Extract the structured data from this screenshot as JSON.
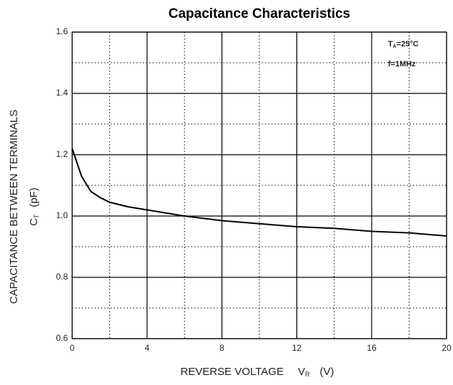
{
  "chart_data": {
    "type": "line",
    "title": "Capacitance Characteristics",
    "y_label": "CAPACITANCE BETWEEN TERMINALS",
    "y_label2": {
      "main": "C",
      "sub": "T",
      "unit": "(pF)"
    },
    "x_label": {
      "main": "REVERSE VOLTAGE",
      "sym": "V",
      "sub": "R",
      "unit": "(V)"
    },
    "annotations": [
      {
        "main": "T",
        "sub": "A",
        "rest": "=25°C"
      },
      {
        "main": "f=1MHz"
      }
    ],
    "x": [
      0,
      0.5,
      1,
      1.5,
      2,
      3,
      4,
      6,
      8,
      10,
      12,
      14,
      16,
      18,
      20
    ],
    "series": [
      {
        "name": "C",
        "color": "#000000",
        "values": [
          1.22,
          1.13,
          1.08,
          1.06,
          1.045,
          1.03,
          1.02,
          1.0,
          0.985,
          0.975,
          0.965,
          0.96,
          0.95,
          0.945,
          0.935
        ]
      }
    ],
    "xlim": [
      0,
      20
    ],
    "ylim": [
      0.6,
      1.6
    ],
    "xticks": [
      0,
      4,
      8,
      12,
      16,
      20
    ],
    "yticks": [
      0.6,
      0.8,
      {
        "value": 1,
        "label": "1.0"
      },
      1.2,
      1.4,
      1.6
    ],
    "minor_xticks": [
      2,
      6,
      10,
      14,
      18
    ],
    "minor_yticks": [
      0.7,
      0.9,
      1.1,
      1.3,
      1.5
    ],
    "grid": true
  }
}
